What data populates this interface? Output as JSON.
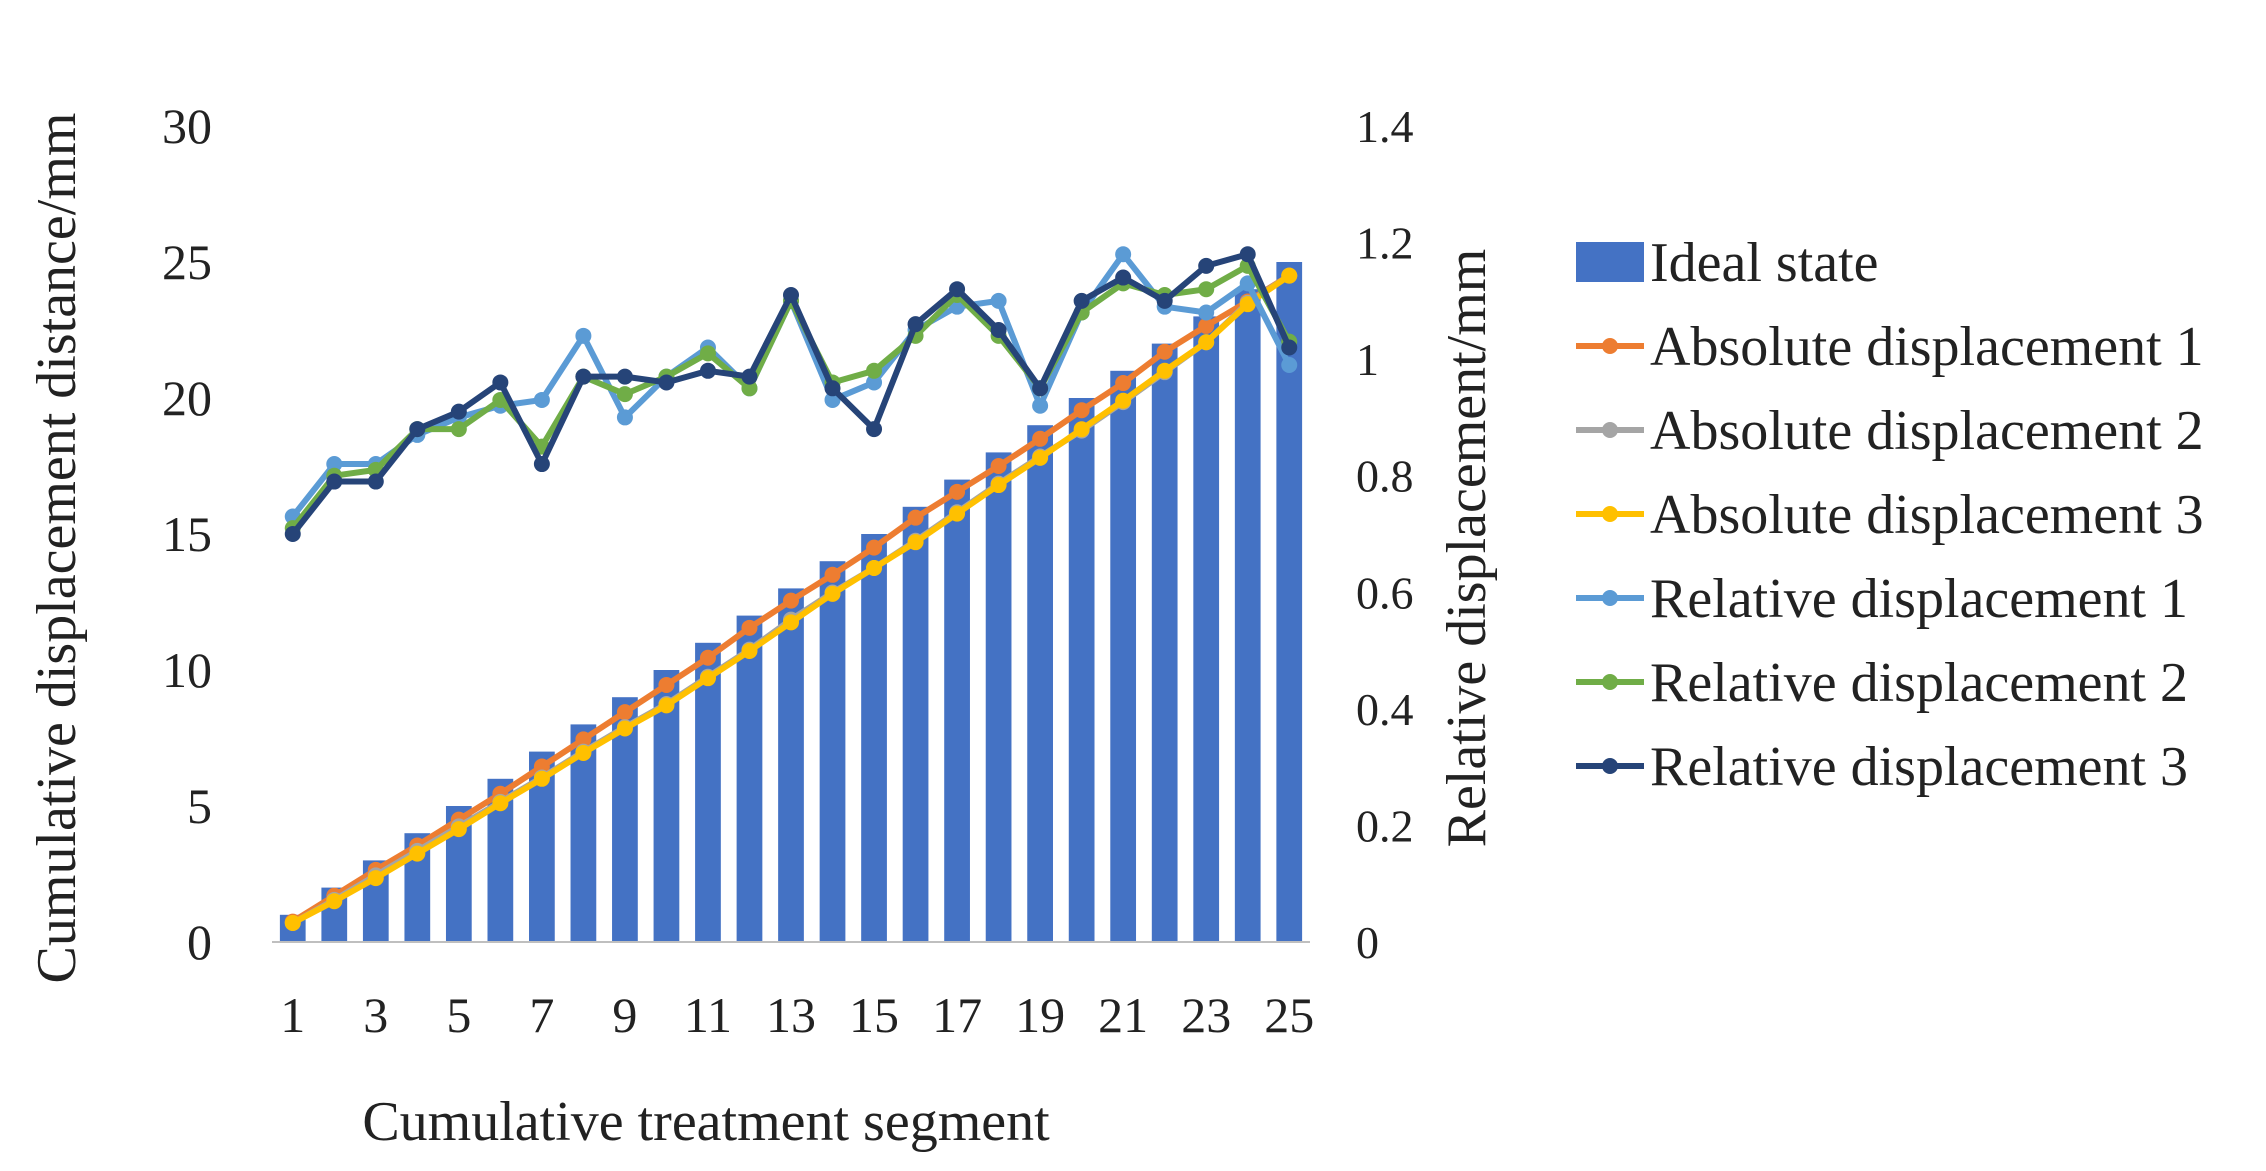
{
  "chart_data": {
    "type": "bar+line",
    "title": "",
    "xlabel": "Cumulative treatment segment",
    "ylabel_left": "Cumulative displacement distance/mm",
    "ylabel_right": "Relative displacement/mm",
    "ylim_left": [
      0,
      30
    ],
    "ylim_right": [
      0,
      1.4
    ],
    "yticks_left": [
      "0",
      "5",
      "10",
      "15",
      "20",
      "25",
      "30"
    ],
    "yticks_right": [
      "0",
      "0.2",
      "0.4",
      "0.6",
      "0.8",
      "1",
      "1.2",
      "1.4"
    ],
    "categories": [
      1,
      2,
      3,
      4,
      5,
      6,
      7,
      8,
      9,
      10,
      11,
      12,
      13,
      14,
      15,
      16,
      17,
      18,
      19,
      20,
      21,
      22,
      23,
      24,
      25
    ],
    "xtick_labels": [
      "1",
      "3",
      "5",
      "7",
      "9",
      "11",
      "13",
      "15",
      "17",
      "19",
      "21",
      "23",
      "25"
    ],
    "legend_position": "right",
    "series": [
      {
        "name": "Ideal state",
        "type": "bar",
        "axis": "left",
        "color": "#4472C4",
        "values": [
          1,
          2,
          3,
          4,
          5,
          6,
          7,
          8,
          9,
          10,
          11,
          12,
          13,
          14,
          15,
          16,
          17,
          18,
          19,
          20,
          21,
          22,
          23,
          24,
          25
        ]
      },
      {
        "name": "Absolute displacement 1",
        "type": "line",
        "axis": "left",
        "color": "#ED7D31",
        "values": [
          0.75,
          1.7,
          2.65,
          3.55,
          4.5,
          5.45,
          6.45,
          7.45,
          8.45,
          9.45,
          10.45,
          11.55,
          12.55,
          13.5,
          14.5,
          15.6,
          16.55,
          17.5,
          18.5,
          19.55,
          20.55,
          21.7,
          22.65,
          23.55,
          24.5
        ]
      },
      {
        "name": "Absolute displacement 2",
        "type": "line",
        "axis": "left",
        "color": "#A5A5A5",
        "values": [
          0.7,
          1.55,
          2.45,
          3.35,
          4.25,
          5.15,
          6.05,
          7.0,
          7.9,
          8.75,
          9.75,
          10.75,
          11.85,
          12.85,
          13.75,
          14.75,
          15.8,
          16.85,
          17.85,
          18.8,
          19.85,
          20.95,
          22.05,
          23.5,
          24.5
        ]
      },
      {
        "name": "Absolute displacement 3",
        "type": "line",
        "axis": "left",
        "color": "#FFC000",
        "values": [
          0.7,
          1.5,
          2.35,
          3.25,
          4.15,
          5.1,
          6.0,
          6.95,
          7.85,
          8.7,
          9.7,
          10.7,
          11.75,
          12.8,
          13.75,
          14.7,
          15.75,
          16.8,
          17.8,
          18.85,
          19.9,
          21.0,
          22.05,
          23.45,
          24.5
        ]
      },
      {
        "name": "Relative displacement 1",
        "type": "line",
        "axis": "right",
        "color": "#5B9BD5",
        "values": [
          0.73,
          0.82,
          0.82,
          0.87,
          0.9,
          0.92,
          0.93,
          1.04,
          0.9,
          0.97,
          1.02,
          0.95,
          1.1,
          0.93,
          0.96,
          1.05,
          1.09,
          1.1,
          0.92,
          1.08,
          1.18,
          1.09,
          1.08,
          1.13,
          0.99
        ]
      },
      {
        "name": "Relative displacement 2",
        "type": "line",
        "axis": "right",
        "color": "#70AD47",
        "values": [
          0.71,
          0.8,
          0.81,
          0.88,
          0.88,
          0.93,
          0.85,
          0.97,
          0.94,
          0.97,
          1.01,
          0.95,
          1.1,
          0.96,
          0.98,
          1.04,
          1.11,
          1.04,
          0.95,
          1.08,
          1.13,
          1.11,
          1.12,
          1.16,
          1.03
        ]
      },
      {
        "name": "Relative displacement 3",
        "type": "line",
        "axis": "right",
        "color": "#264478",
        "values": [
          0.7,
          0.79,
          0.79,
          0.88,
          0.91,
          0.96,
          0.82,
          0.97,
          0.97,
          0.96,
          0.98,
          0.97,
          1.11,
          0.95,
          0.88,
          1.06,
          1.12,
          1.05,
          0.95,
          1.1,
          1.14,
          1.1,
          1.16,
          1.18,
          1.02
        ]
      }
    ]
  }
}
